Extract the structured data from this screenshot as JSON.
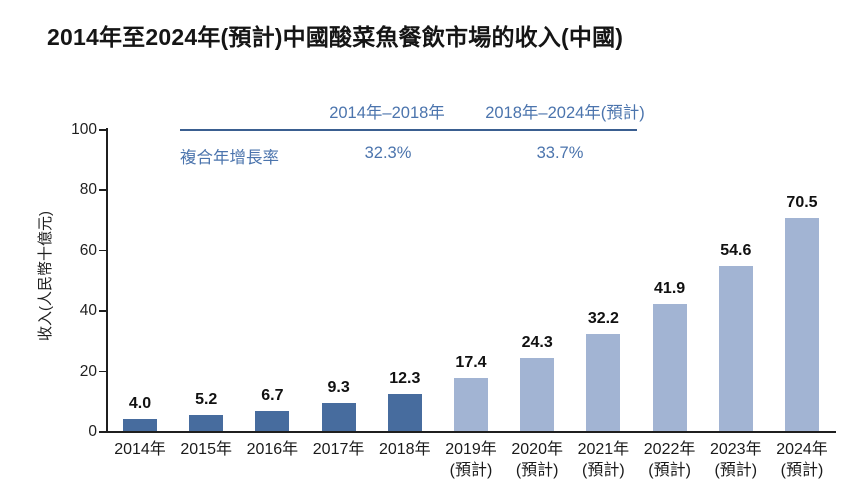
{
  "title": "2014年至2024年(預計)中國酸菜魚餐飲市場的收入(中國)",
  "cagr_table": {
    "row_label": "複合年增長率",
    "periods": [
      {
        "label": "2014年–2018年",
        "value": "32.3%"
      },
      {
        "label": "2018年–2024年(預計)",
        "value": "33.7%"
      }
    ]
  },
  "chart_data": {
    "type": "bar",
    "categories": [
      "2014年",
      "2015年",
      "2016年",
      "2017年",
      "2018年",
      "2019年",
      "2020年",
      "2021年",
      "2022年",
      "2023年",
      "2024年"
    ],
    "values": [
      4.0,
      5.2,
      6.7,
      9.3,
      12.3,
      17.4,
      24.3,
      32.2,
      41.9,
      54.6,
      70.5
    ],
    "forecast_start_index": 5,
    "forecast_suffix": "(預計)",
    "title": "2014年至2024年(預計)中國酸菜魚餐飲市場的收入(中國)",
    "xlabel": "",
    "ylabel": "收入(人民幣十億元)",
    "ylim": [
      0,
      100
    ],
    "yticks": [
      0,
      20,
      40,
      60,
      80,
      100
    ],
    "grid": false,
    "legend": "none",
    "colors": {
      "actual_bar": "#476C9E",
      "forecast_bar": "#A2B4D3",
      "accent_text": "#4B74AD",
      "accent_line": "#3A5E90",
      "axis": "#1F1F1F"
    }
  }
}
